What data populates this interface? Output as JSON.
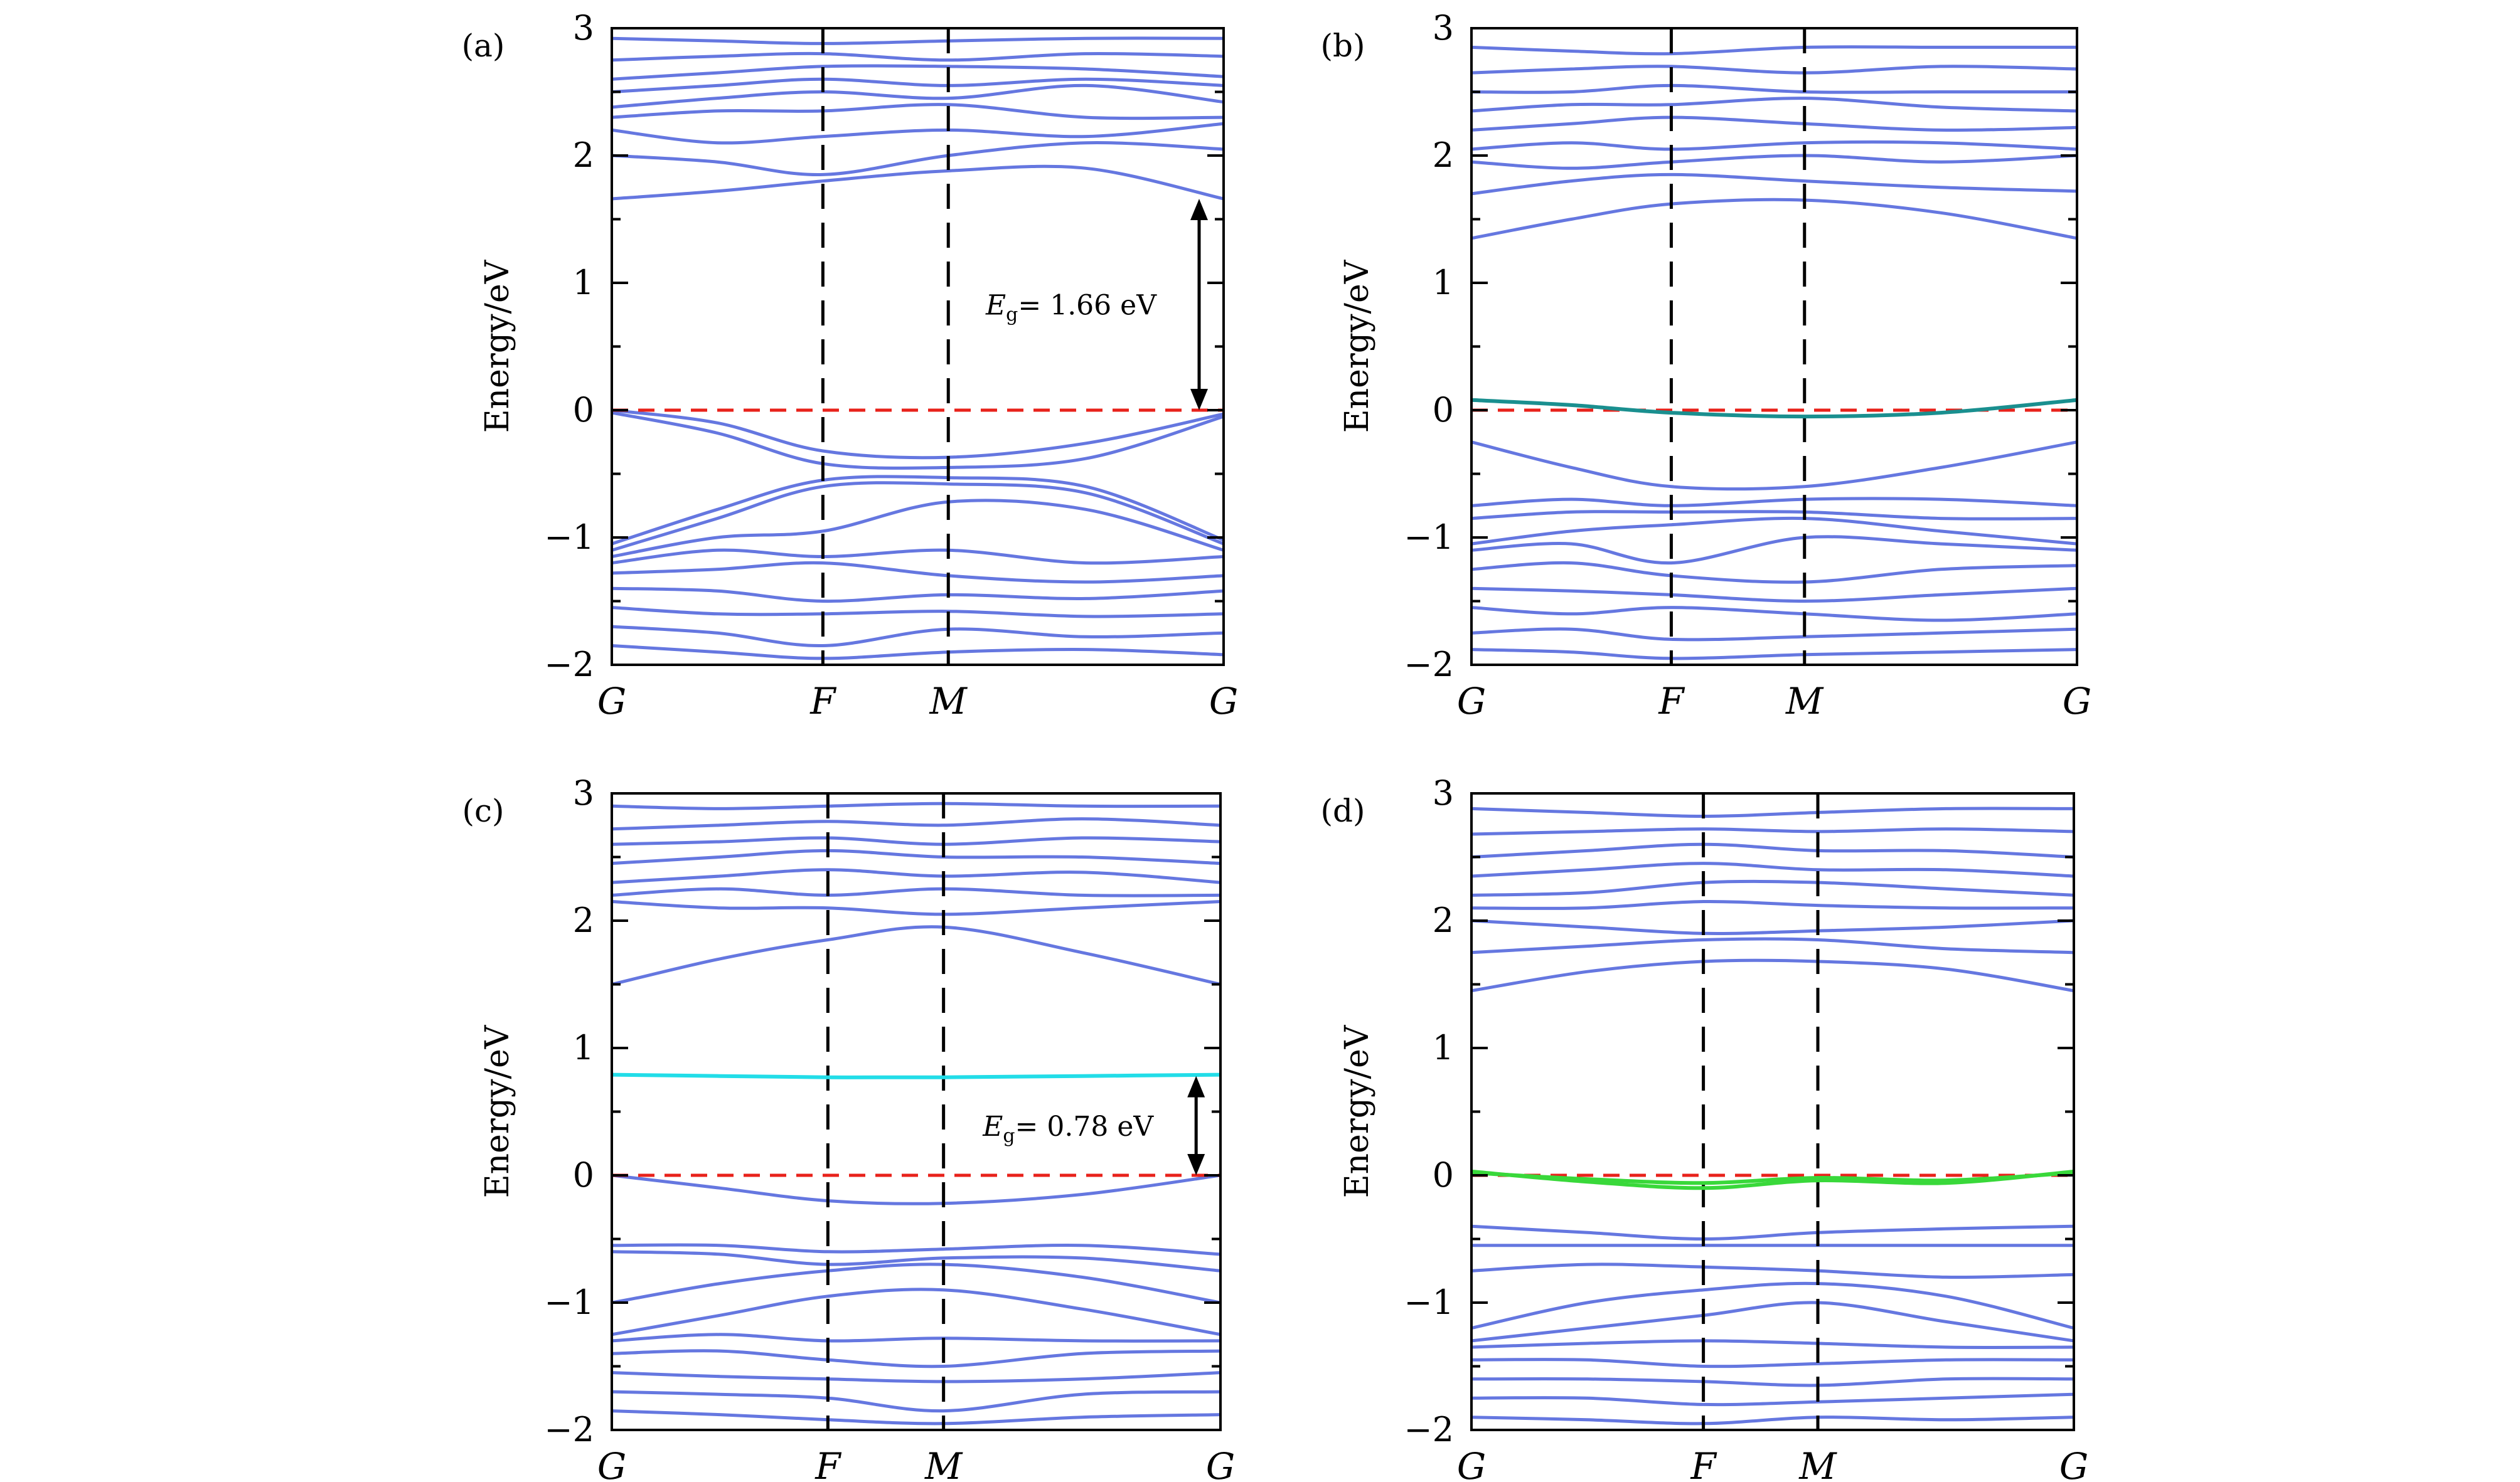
{
  "figure": {
    "background": "#ffffff",
    "band_color": "#6577e0",
    "fermi_color": "#e8221b",
    "divider_color": "#000000"
  },
  "chart_data": [
    {
      "panel": "(a)",
      "type": "line",
      "ylabel": "Energy/eV",
      "ylim": [
        -2,
        3
      ],
      "yticks": [
        "−2",
        "−1",
        "0",
        "1",
        "2",
        "3"
      ],
      "kpoints": [
        "G",
        "F",
        "M",
        "G"
      ],
      "kpoint_positions": [
        0,
        0.345,
        0.55,
        1.0
      ],
      "fermi_level": 0,
      "gap": {
        "text": "E",
        "sub": "g",
        "value": "= 1.66 eV",
        "from": 0,
        "to": 1.66,
        "at": 0.96
      },
      "special_bands": [],
      "valence_bands": [
        [
          0,
          -0.1,
          -0.32,
          -0.37,
          -0.26,
          -0.03
        ],
        [
          -0.02,
          -0.18,
          -0.42,
          -0.45,
          -0.38,
          -0.05
        ],
        [
          -1.05,
          -0.78,
          -0.55,
          -0.53,
          -0.6,
          -1.02
        ],
        [
          -1.1,
          -0.85,
          -0.6,
          -0.58,
          -0.65,
          -1.05
        ],
        [
          -1.15,
          -1.0,
          -0.95,
          -0.72,
          -0.78,
          -1.1
        ],
        [
          -1.2,
          -1.1,
          -1.15,
          -1.1,
          -1.2,
          -1.15
        ],
        [
          -1.28,
          -1.25,
          -1.2,
          -1.3,
          -1.35,
          -1.3
        ],
        [
          -1.4,
          -1.42,
          -1.5,
          -1.45,
          -1.48,
          -1.42
        ],
        [
          -1.55,
          -1.6,
          -1.6,
          -1.58,
          -1.62,
          -1.6
        ],
        [
          -1.7,
          -1.75,
          -1.85,
          -1.72,
          -1.78,
          -1.75
        ],
        [
          -1.85,
          -1.9,
          -1.95,
          -1.9,
          -1.88,
          -1.92
        ]
      ],
      "conduction_bands": [
        [
          1.66,
          1.72,
          1.8,
          1.88,
          1.9,
          1.66
        ],
        [
          2.0,
          1.95,
          1.85,
          2.0,
          2.1,
          2.05
        ],
        [
          2.2,
          2.1,
          2.15,
          2.2,
          2.15,
          2.25
        ],
        [
          2.3,
          2.35,
          2.35,
          2.4,
          2.3,
          2.3
        ],
        [
          2.38,
          2.45,
          2.5,
          2.45,
          2.55,
          2.42
        ],
        [
          2.5,
          2.55,
          2.6,
          2.55,
          2.6,
          2.55
        ],
        [
          2.6,
          2.65,
          2.7,
          2.7,
          2.68,
          2.62
        ],
        [
          2.75,
          2.78,
          2.8,
          2.75,
          2.8,
          2.78
        ],
        [
          2.92,
          2.9,
          2.88,
          2.9,
          2.92,
          2.92
        ]
      ]
    },
    {
      "panel": "(b)",
      "type": "line",
      "ylabel": "Energy/eV",
      "ylim": [
        -2,
        3
      ],
      "yticks": [
        "−2",
        "−1",
        "0",
        "1",
        "2",
        "3"
      ],
      "kpoints": [
        "G",
        "F",
        "M",
        "G"
      ],
      "kpoint_positions": [
        0,
        0.33,
        0.55,
        1.0
      ],
      "fermi_level": 0,
      "gap": null,
      "special_bands": [
        {
          "color": "#1a8f8f",
          "values": [
            0.08,
            0.04,
            -0.02,
            -0.05,
            -0.02,
            0.08
          ]
        }
      ],
      "valence_bands": [
        [
          -0.25,
          -0.45,
          -0.6,
          -0.6,
          -0.45,
          -0.25
        ],
        [
          -0.75,
          -0.7,
          -0.75,
          -0.7,
          -0.7,
          -0.75
        ],
        [
          -0.85,
          -0.8,
          -0.8,
          -0.8,
          -0.85,
          -0.85
        ],
        [
          -1.05,
          -0.95,
          -0.9,
          -0.85,
          -0.95,
          -1.05
        ],
        [
          -1.1,
          -1.05,
          -1.2,
          -1.0,
          -1.05,
          -1.1
        ],
        [
          -1.25,
          -1.2,
          -1.3,
          -1.35,
          -1.25,
          -1.22
        ],
        [
          -1.4,
          -1.42,
          -1.45,
          -1.5,
          -1.45,
          -1.4
        ],
        [
          -1.55,
          -1.6,
          -1.55,
          -1.6,
          -1.65,
          -1.6
        ],
        [
          -1.75,
          -1.72,
          -1.8,
          -1.78,
          -1.75,
          -1.72
        ],
        [
          -1.88,
          -1.9,
          -1.95,
          -1.92,
          -1.9,
          -1.88
        ]
      ],
      "conduction_bands": [
        [
          1.35,
          1.5,
          1.62,
          1.65,
          1.55,
          1.35
        ],
        [
          1.7,
          1.8,
          1.85,
          1.8,
          1.75,
          1.72
        ],
        [
          1.95,
          1.9,
          1.95,
          2.0,
          1.95,
          2.0
        ],
        [
          2.05,
          2.1,
          2.05,
          2.1,
          2.1,
          2.05
        ],
        [
          2.2,
          2.25,
          2.3,
          2.25,
          2.2,
          2.22
        ],
        [
          2.35,
          2.4,
          2.4,
          2.45,
          2.38,
          2.35
        ],
        [
          2.5,
          2.5,
          2.55,
          2.5,
          2.5,
          2.5
        ],
        [
          2.65,
          2.68,
          2.7,
          2.65,
          2.7,
          2.68
        ],
        [
          2.85,
          2.82,
          2.8,
          2.85,
          2.85,
          2.85
        ]
      ]
    },
    {
      "panel": "(c)",
      "type": "line",
      "ylabel": "Energy/eV",
      "ylim": [
        -2,
        3
      ],
      "yticks": [
        "−2",
        "−1",
        "0",
        "1",
        "2",
        "3"
      ],
      "kpoints": [
        "G",
        "F",
        "M",
        "G"
      ],
      "kpoint_positions": [
        0,
        0.355,
        0.545,
        1.0
      ],
      "fermi_level": 0,
      "gap": {
        "text": "E",
        "sub": "g",
        "value": "= 0.78 eV",
        "from": 0,
        "to": 0.78,
        "at": 0.96
      },
      "special_bands": [
        {
          "color": "#22dde8",
          "values": [
            0.79,
            0.78,
            0.77,
            0.77,
            0.78,
            0.79
          ]
        }
      ],
      "valence_bands": [
        [
          0,
          -0.1,
          -0.2,
          -0.22,
          -0.15,
          0
        ],
        [
          -0.55,
          -0.55,
          -0.6,
          -0.58,
          -0.55,
          -0.62
        ],
        [
          -0.6,
          -0.62,
          -0.7,
          -0.65,
          -0.65,
          -0.75
        ],
        [
          -1.0,
          -0.85,
          -0.75,
          -0.7,
          -0.8,
          -1.0
        ],
        [
          -1.25,
          -1.1,
          -0.95,
          -0.9,
          -1.05,
          -1.25
        ],
        [
          -1.3,
          -1.25,
          -1.3,
          -1.28,
          -1.3,
          -1.3
        ],
        [
          -1.4,
          -1.38,
          -1.45,
          -1.5,
          -1.4,
          -1.38
        ],
        [
          -1.55,
          -1.58,
          -1.6,
          -1.62,
          -1.6,
          -1.55
        ],
        [
          -1.7,
          -1.72,
          -1.75,
          -1.85,
          -1.72,
          -1.7
        ],
        [
          -1.85,
          -1.88,
          -1.92,
          -1.95,
          -1.9,
          -1.88
        ]
      ],
      "conduction_bands": [
        [
          1.5,
          1.7,
          1.85,
          1.95,
          1.75,
          1.5
        ],
        [
          2.15,
          2.1,
          2.1,
          2.05,
          2.1,
          2.15
        ],
        [
          2.2,
          2.25,
          2.2,
          2.25,
          2.2,
          2.2
        ],
        [
          2.3,
          2.35,
          2.4,
          2.35,
          2.38,
          2.3
        ],
        [
          2.45,
          2.5,
          2.55,
          2.5,
          2.5,
          2.45
        ],
        [
          2.6,
          2.62,
          2.65,
          2.6,
          2.65,
          2.62
        ],
        [
          2.72,
          2.75,
          2.78,
          2.75,
          2.8,
          2.75
        ],
        [
          2.9,
          2.88,
          2.9,
          2.92,
          2.9,
          2.9
        ]
      ]
    },
    {
      "panel": "(d)",
      "type": "line",
      "ylabel": "Energy/eV",
      "ylim": [
        -2,
        3
      ],
      "yticks": [
        "−2",
        "−1",
        "0",
        "1",
        "2",
        "3"
      ],
      "kpoints": [
        "G",
        "F",
        "M",
        "G"
      ],
      "kpoint_positions": [
        0,
        0.385,
        0.575,
        1.0
      ],
      "fermi_level": 0,
      "gap": null,
      "special_bands": [
        {
          "color": "#39d83a",
          "values": [
            0.03,
            -0.05,
            -0.1,
            -0.04,
            -0.06,
            0.03
          ]
        },
        {
          "color": "#39d83a",
          "values": [
            0.02,
            -0.03,
            -0.06,
            -0.02,
            -0.04,
            0.02
          ]
        }
      ],
      "valence_bands": [
        [
          -0.4,
          -0.45,
          -0.5,
          -0.45,
          -0.42,
          -0.4
        ],
        [
          -0.55,
          -0.55,
          -0.55,
          -0.55,
          -0.55,
          -0.55
        ],
        [
          -0.75,
          -0.7,
          -0.72,
          -0.75,
          -0.8,
          -0.78
        ],
        [
          -1.2,
          -1.0,
          -0.9,
          -0.85,
          -0.95,
          -1.2
        ],
        [
          -1.3,
          -1.2,
          -1.1,
          -1.0,
          -1.15,
          -1.3
        ],
        [
          -1.35,
          -1.32,
          -1.3,
          -1.32,
          -1.35,
          -1.35
        ],
        [
          -1.45,
          -1.45,
          -1.5,
          -1.48,
          -1.45,
          -1.45
        ],
        [
          -1.6,
          -1.6,
          -1.62,
          -1.65,
          -1.6,
          -1.6
        ],
        [
          -1.75,
          -1.75,
          -1.8,
          -1.78,
          -1.75,
          -1.72
        ],
        [
          -1.9,
          -1.92,
          -1.95,
          -1.9,
          -1.92,
          -1.9
        ]
      ],
      "conduction_bands": [
        [
          1.45,
          1.6,
          1.68,
          1.68,
          1.62,
          1.45
        ],
        [
          1.75,
          1.8,
          1.85,
          1.85,
          1.78,
          1.75
        ],
        [
          2.0,
          1.95,
          1.9,
          1.92,
          1.95,
          2.0
        ],
        [
          2.1,
          2.1,
          2.15,
          2.12,
          2.1,
          2.1
        ],
        [
          2.2,
          2.22,
          2.3,
          2.3,
          2.25,
          2.2
        ],
        [
          2.35,
          2.4,
          2.45,
          2.4,
          2.4,
          2.35
        ],
        [
          2.5,
          2.55,
          2.6,
          2.55,
          2.55,
          2.5
        ],
        [
          2.68,
          2.7,
          2.72,
          2.7,
          2.72,
          2.7
        ],
        [
          2.88,
          2.85,
          2.82,
          2.85,
          2.88,
          2.88
        ]
      ]
    }
  ]
}
